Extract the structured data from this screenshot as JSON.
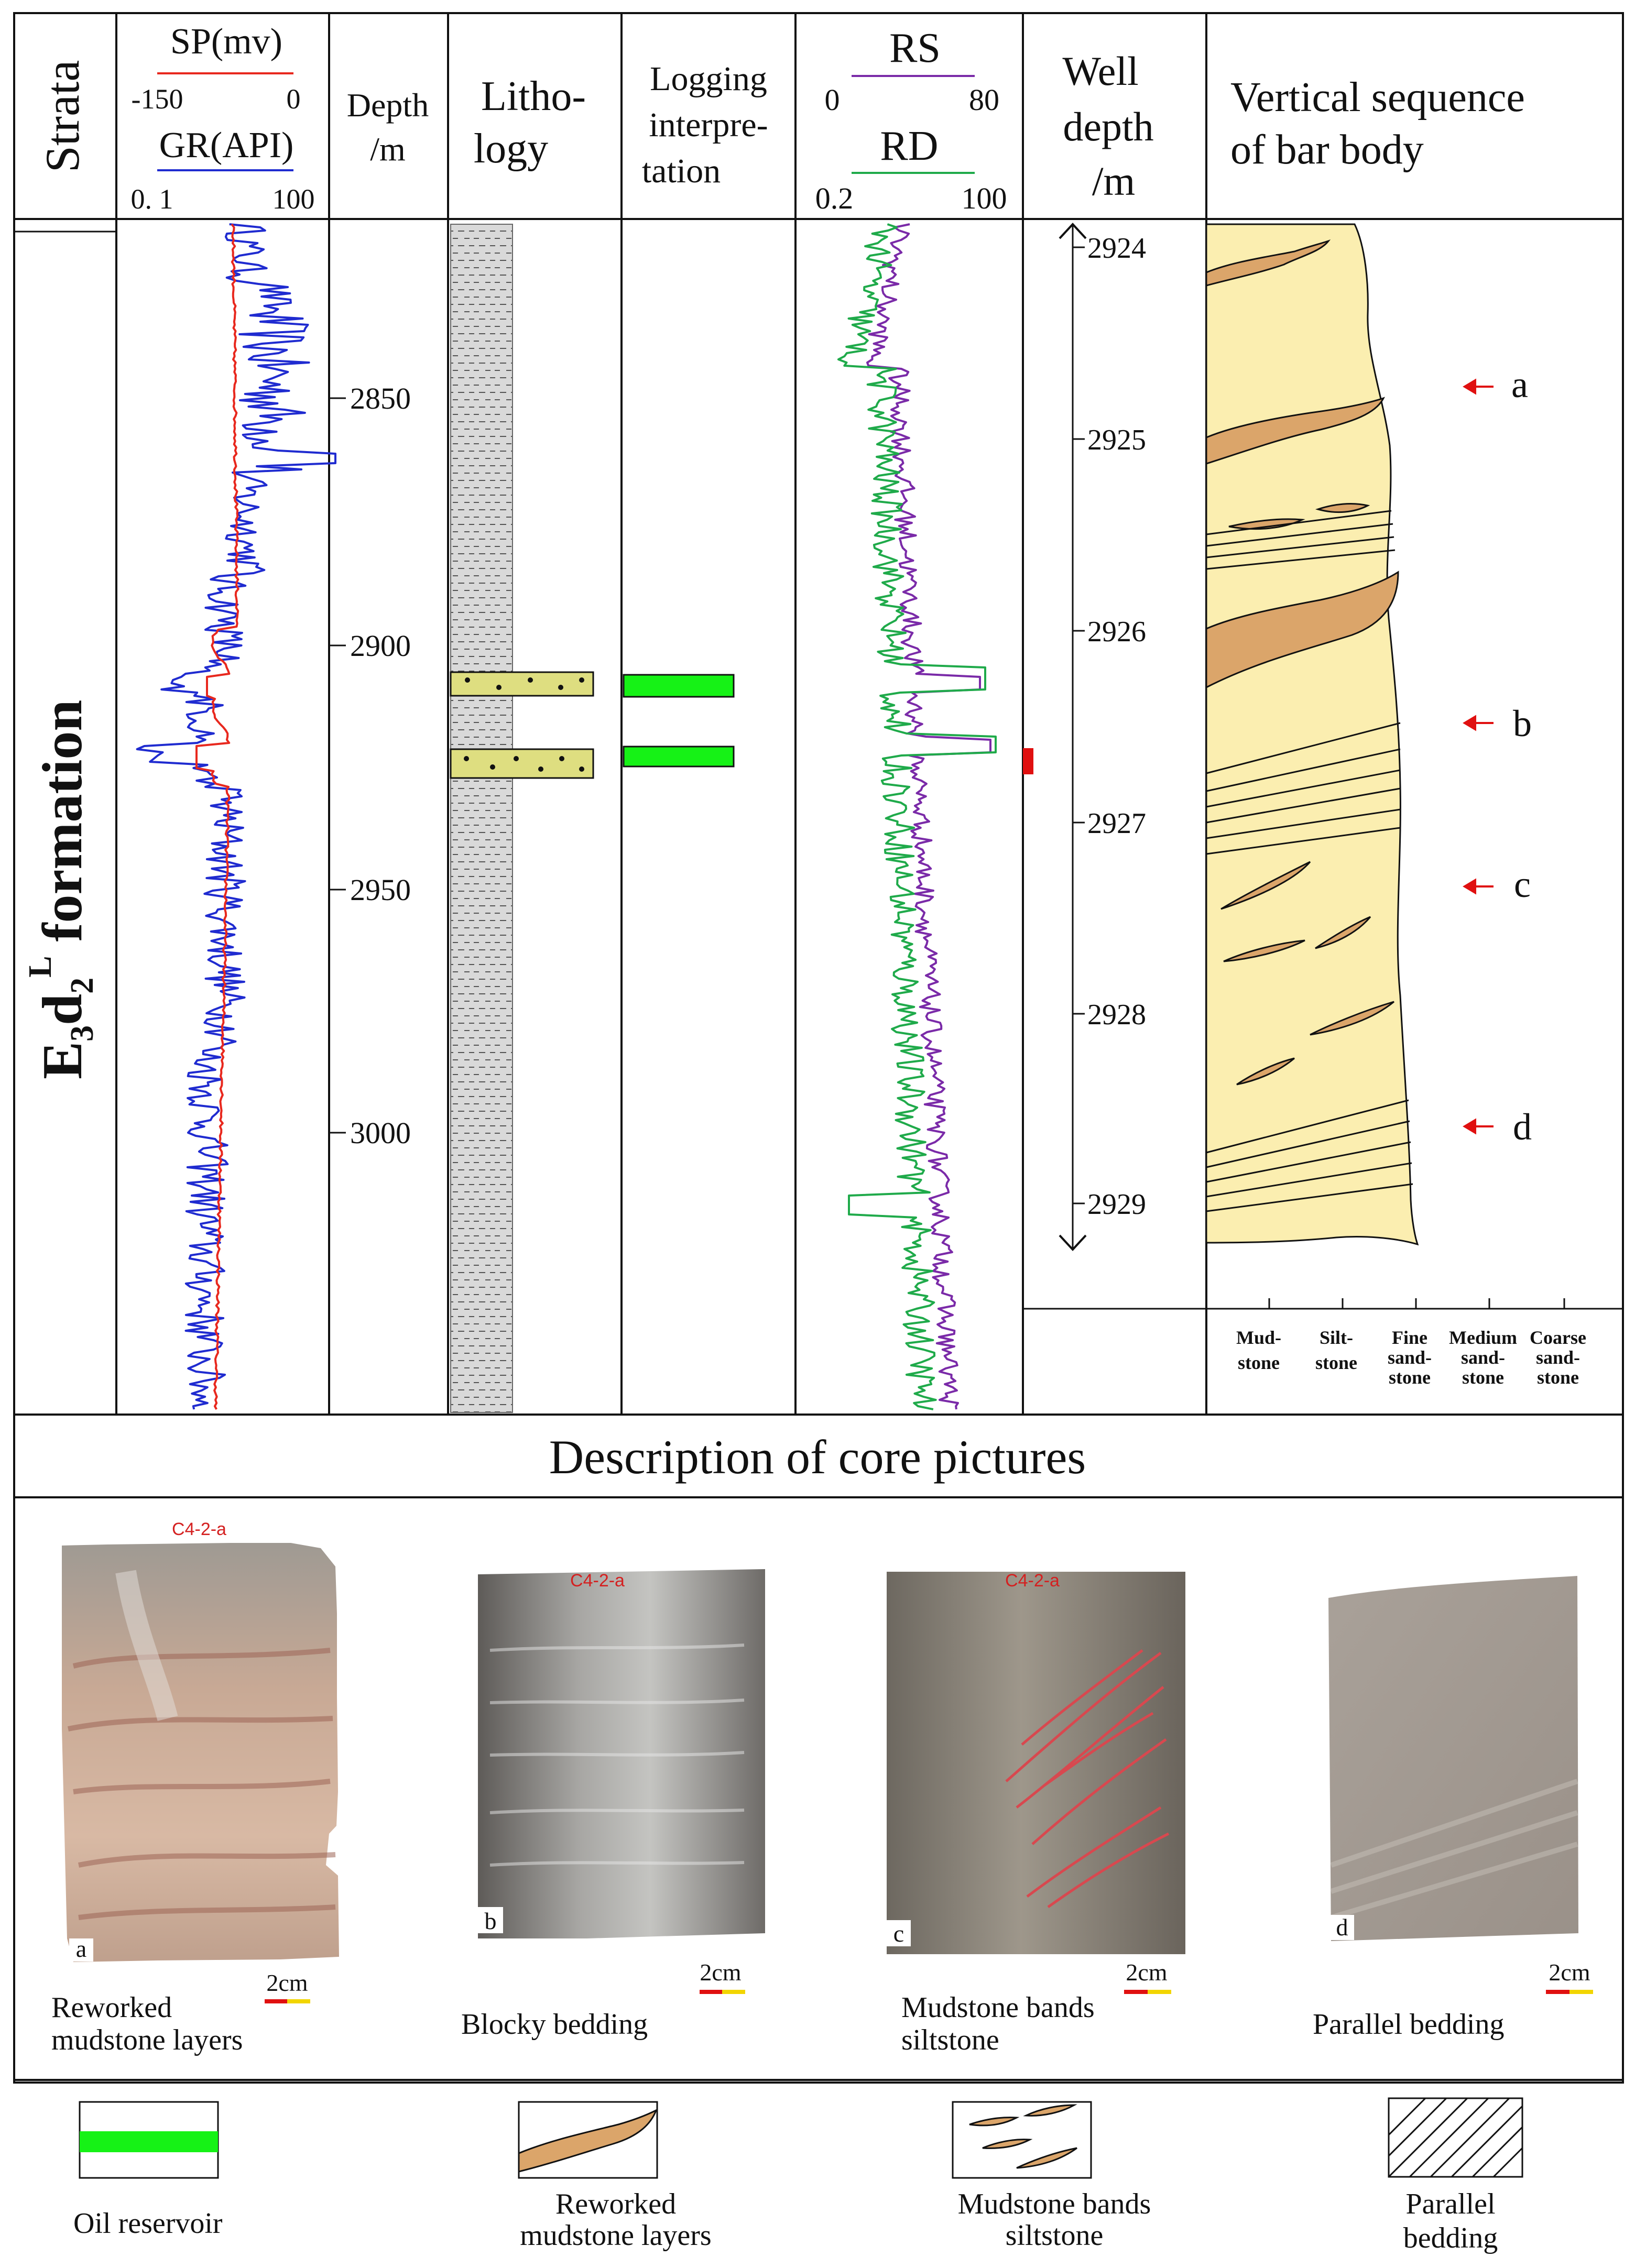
{
  "header": {
    "strata": "Strata",
    "sp_title": "SP(mv)",
    "sp_min": "-150",
    "sp_max": "0",
    "gr_title": "GR(API)",
    "gr_min": "0. 1",
    "gr_max": "100",
    "depth_line1": "Depth",
    "depth_line2": "/m",
    "lith_line1": "Litho-",
    "lith_line2": "logy",
    "log_line1": "Logging",
    "log_line2": "interpre-",
    "log_line3": "tation",
    "rs_title": "RS",
    "rs_min": "0",
    "rs_max": "80",
    "rd_title": "RD",
    "rd_min": "0.2",
    "rd_max": "100",
    "well_line1": "Well",
    "well_line2": "depth",
    "well_line3": "/m",
    "vert_line1": "Vertical sequence",
    "vert_line2": "of bar body"
  },
  "formation": {
    "prefix": "E",
    "sub1": "3",
    "mid": "d",
    "sub2": "2",
    "sup": "L",
    "suffix": " formation"
  },
  "depth_ticks": [
    "2850",
    "2900",
    "2950",
    "3000"
  ],
  "well_depth_ticks": [
    "2924",
    "2925",
    "2926",
    "2927",
    "2928",
    "2929"
  ],
  "arrow_labels": [
    "a",
    "b",
    "c",
    "d"
  ],
  "grain_sizes": [
    {
      "l1": "Mud-",
      "l2": "stone",
      "l3": ""
    },
    {
      "l1": "Silt-",
      "l2": "stone",
      "l3": ""
    },
    {
      "l1": "Fine",
      "l2": "sand-",
      "l3": "stone"
    },
    {
      "l1": "Medium",
      "l2": "sand-",
      "l3": "stone"
    },
    {
      "l1": "Coarse",
      "l2": "sand-",
      "l3": "stone"
    }
  ],
  "core_section_title": "Description of core pictures",
  "cores": [
    {
      "letter": "a",
      "tag": "C4-2-a",
      "scale": "2cm",
      "caption1": "Reworked",
      "caption2": "mudstone layers"
    },
    {
      "letter": "b",
      "tag": "C4-2-a",
      "scale": "2cm",
      "caption1": "Blocky bedding",
      "caption2": ""
    },
    {
      "letter": "c",
      "tag": "C4-2-a",
      "scale": "2cm",
      "caption1": "Mudstone bands",
      "caption2": "siltstone"
    },
    {
      "letter": "d",
      "tag": "",
      "scale": "2cm",
      "caption1": "Parallel bedding",
      "caption2": ""
    }
  ],
  "legend": [
    {
      "l1": "Oil reservoir",
      "l2": ""
    },
    {
      "l1": "Reworked",
      "l2": "mudstone layers"
    },
    {
      "l1": "Mudstone bands",
      "l2": "siltstone"
    },
    {
      "l1": "Parallel",
      "l2": "bedding"
    }
  ],
  "colors": {
    "sp": "#e8281e",
    "gr": "#1f2bd0",
    "rs": "#7a2aa8",
    "rd": "#1faa4a",
    "oil": "#16f216",
    "sand_lith": "#dede80",
    "mud_lith": "#d9d9d9",
    "bar_body": "#fbeeb0",
    "mud_layer": "#dba56a",
    "marker": "#e01010"
  }
}
